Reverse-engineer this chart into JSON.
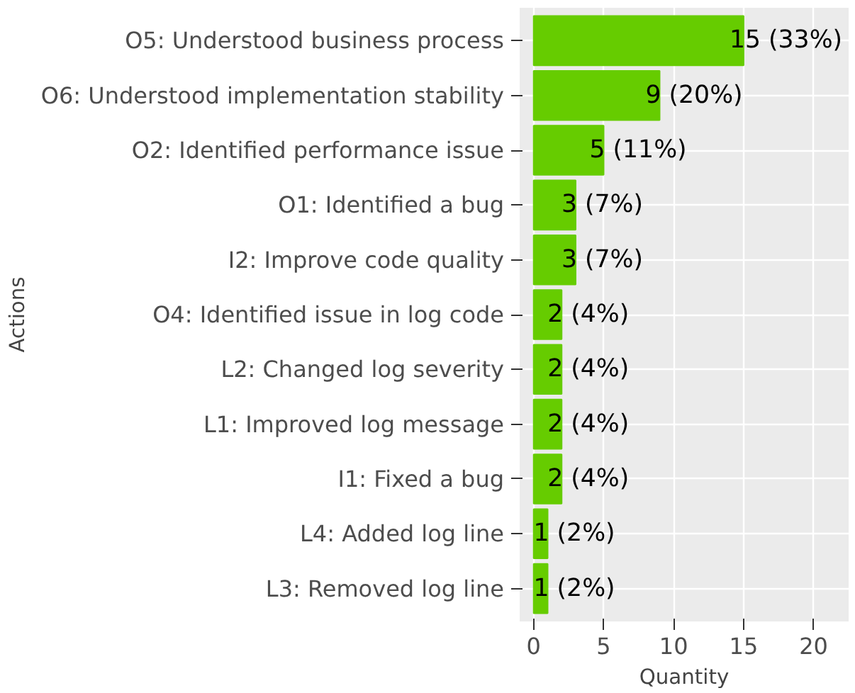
{
  "chart_data": {
    "type": "bar",
    "orientation": "horizontal",
    "xlabel": "Quantity",
    "ylabel": "Actions",
    "categories": [
      "O5: Understood business process",
      "O6: Understood implementation stability",
      "O2: Identified performance issue",
      "O1: Identified a bug",
      "I2: Improve code quality",
      "O4: Identified issue in log code",
      "L2: Changed log severity",
      "L1: Improved log message",
      "I1: Fixed a bug",
      "L4: Added log line",
      "L3: Removed log line"
    ],
    "values": [
      15,
      9,
      5,
      3,
      3,
      2,
      2,
      2,
      2,
      1,
      1
    ],
    "value_labels": [
      "15 (33%)",
      "9 (20%)",
      "5 (11%)",
      "3 (7%)",
      "3 (7%)",
      "2 (4%)",
      "2 (4%)",
      "2 (4%)",
      "2 (4%)",
      "1 (2%)",
      "1 (2%)"
    ],
    "color": "#66cc00",
    "xlim": [
      -1,
      22.5
    ],
    "xticks": [
      0,
      5,
      10,
      15,
      20
    ],
    "grid": true
  }
}
